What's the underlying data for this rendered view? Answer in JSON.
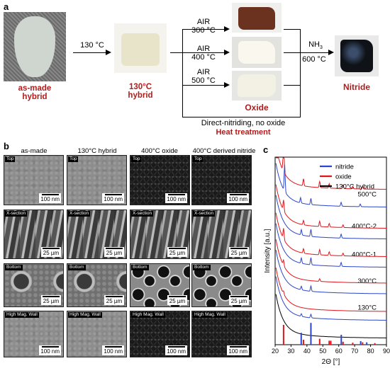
{
  "panel_a": {
    "letter": "a",
    "steps": {
      "as_made_line1": "as-made",
      "as_made_line2": "hybrid",
      "temp_label": "130 °C",
      "hybrid_line1": "130°C",
      "hybrid_line2": "hybrid",
      "air_300_line1": "AIR",
      "air_300_line2": "300 °C",
      "air_400_line1": "AIR",
      "air_400_line2": "400 °C",
      "air_500_line1": "AIR",
      "air_500_line2": "500 °C",
      "oxide": "Oxide",
      "nh3_line1": "NH",
      "nh3_sub": "3",
      "nh3_line2": "600 °C",
      "nitride": "Nitride",
      "direct": "Direct-nitriding, no oxide",
      "heat": "Heat treatment"
    }
  },
  "panel_b": {
    "letter": "b",
    "columns": [
      "as-made",
      "130°C hybrid",
      "400°C oxide",
      "400°C derived nitride"
    ],
    "rows": [
      {
        "tag": "Top",
        "scale": "100 nm"
      },
      {
        "tag": "X-section",
        "scale": "25 µm"
      },
      {
        "tag": "Bottom",
        "scale": "25 µm"
      },
      {
        "tag": "High Mag. Wall",
        "scale": "100 nm"
      }
    ]
  },
  "panel_c": {
    "letter": "c"
  },
  "chart_data": {
    "type": "line",
    "xlabel": "2Θ [°]",
    "ylabel": "Intensity [a.u.]",
    "xlim": [
      20,
      90
    ],
    "xticks": [
      20,
      30,
      40,
      50,
      60,
      70,
      80,
      90
    ],
    "legend": [
      {
        "name": "nitride",
        "color": "#2b46c8"
      },
      {
        "name": "oxide",
        "color": "#e0161c"
      },
      {
        "name": "130°C hybrid",
        "color": "#000000"
      }
    ],
    "legend_position": "top-right",
    "series": [
      {
        "name": "500°C nitride",
        "color": "#2b46c8",
        "offset": 7.4,
        "label": "500°C",
        "peaks": [
          [
            26,
            1.5
          ],
          [
            36,
            0.3
          ],
          [
            42.5,
            0.35
          ],
          [
            61.5,
            0.22
          ],
          [
            73.5,
            0.15
          ]
        ]
      },
      {
        "name": "500°C oxide",
        "color": "#e0161c",
        "offset": 8.4,
        "peaks": [
          [
            25.3,
            2.2
          ],
          [
            37.8,
            0.4
          ],
          [
            48,
            0.35
          ],
          [
            54,
            0.25
          ],
          [
            62.7,
            0.2
          ],
          [
            68.8,
            0.15
          ],
          [
            75,
            0.15
          ]
        ]
      },
      {
        "name": "400°C-2 nitride",
        "color": "#2b46c8",
        "offset": 5.6,
        "label": "400°C-2",
        "peaks": [
          [
            36.5,
            0.3
          ],
          [
            42.5,
            0.4
          ],
          [
            61.5,
            0.22
          ]
        ]
      },
      {
        "name": "400°C-2 oxide",
        "color": "#e0161c",
        "offset": 6.2,
        "peaks": [
          [
            25.3,
            0.6
          ],
          [
            37.8,
            0.25
          ],
          [
            48,
            0.3
          ],
          [
            54,
            0.2
          ],
          [
            62.7,
            0.15
          ]
        ]
      },
      {
        "name": "400°C-1 nitride",
        "color": "#2b46c8",
        "offset": 4.0,
        "label": "400°C-1",
        "peaks": [
          [
            36.5,
            0.3
          ],
          [
            42.5,
            0.4
          ],
          [
            61.5,
            0.22
          ]
        ]
      },
      {
        "name": "400°C-1 oxide",
        "color": "#e0161c",
        "offset": 4.6,
        "peaks": [
          [
            25.3,
            0.6
          ],
          [
            37.8,
            0.25
          ],
          [
            48,
            0.3
          ],
          [
            54,
            0.2
          ],
          [
            62.7,
            0.15
          ]
        ]
      },
      {
        "name": "300°C nitride",
        "color": "#2b46c8",
        "offset": 2.5,
        "label": "300°C",
        "peaks": [
          [
            36.5,
            0.2
          ],
          [
            42.5,
            0.3
          ]
        ]
      },
      {
        "name": "300°C oxide",
        "color": "#e0161c",
        "offset": 3.1,
        "peaks": [
          [
            25.3,
            0.3
          ],
          [
            48,
            0.15
          ]
        ]
      },
      {
        "name": "130°C nitride",
        "color": "#2b46c8",
        "offset": 1.0,
        "label": "130°C",
        "peaks": [
          [
            36.5,
            0.15
          ],
          [
            42.5,
            0.2
          ]
        ]
      },
      {
        "name": "130°C oxide",
        "color": "#e0161c",
        "offset": 1.5,
        "peaks": [
          [
            25.3,
            0.15
          ]
        ]
      },
      {
        "name": "130°C hybrid",
        "color": "#000000",
        "offset": 0.0,
        "peaks": []
      }
    ],
    "reference_bars": {
      "red": [
        [
          25.3,
          1.0
        ],
        [
          37.8,
          0.25
        ],
        [
          48,
          0.3
        ],
        [
          54,
          0.2
        ],
        [
          55,
          0.2
        ],
        [
          62.7,
          0.15
        ],
        [
          68.8,
          0.1
        ],
        [
          75,
          0.12
        ],
        [
          82.7,
          0.08
        ]
      ],
      "blue": [
        [
          36.4,
          0.6
        ],
        [
          42.5,
          1.1
        ],
        [
          61.6,
          0.5
        ],
        [
          73.8,
          0.18
        ],
        [
          77.6,
          0.12
        ]
      ]
    }
  }
}
